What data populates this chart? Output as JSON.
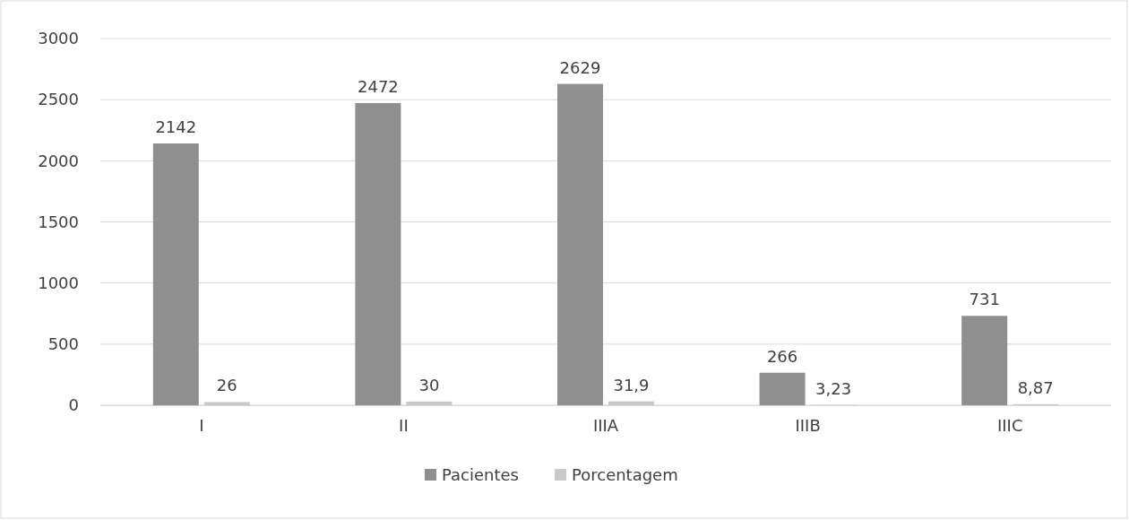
{
  "chart_data": {
    "type": "bar",
    "categories": [
      "I",
      "II",
      "IIIA",
      "IIIB",
      "IIIC"
    ],
    "series": [
      {
        "name": "Pacientes",
        "color": "#8f8f8f",
        "values": [
          2142,
          2472,
          2629,
          266,
          731
        ],
        "value_labels": [
          "2142",
          "2472",
          "2629",
          "266",
          "731"
        ]
      },
      {
        "name": "Porcentagem",
        "color": "#c9c9c9",
        "values": [
          26,
          30,
          31.9,
          3.23,
          8.87
        ],
        "value_labels": [
          "26",
          "30",
          "31,9",
          "3,23",
          "8,87"
        ]
      }
    ],
    "ylim": [
      0,
      3000
    ],
    "yticks": [
      0,
      500,
      1000,
      1500,
      2000,
      2500,
      3000
    ],
    "grid": "y",
    "legend": "bottom"
  }
}
